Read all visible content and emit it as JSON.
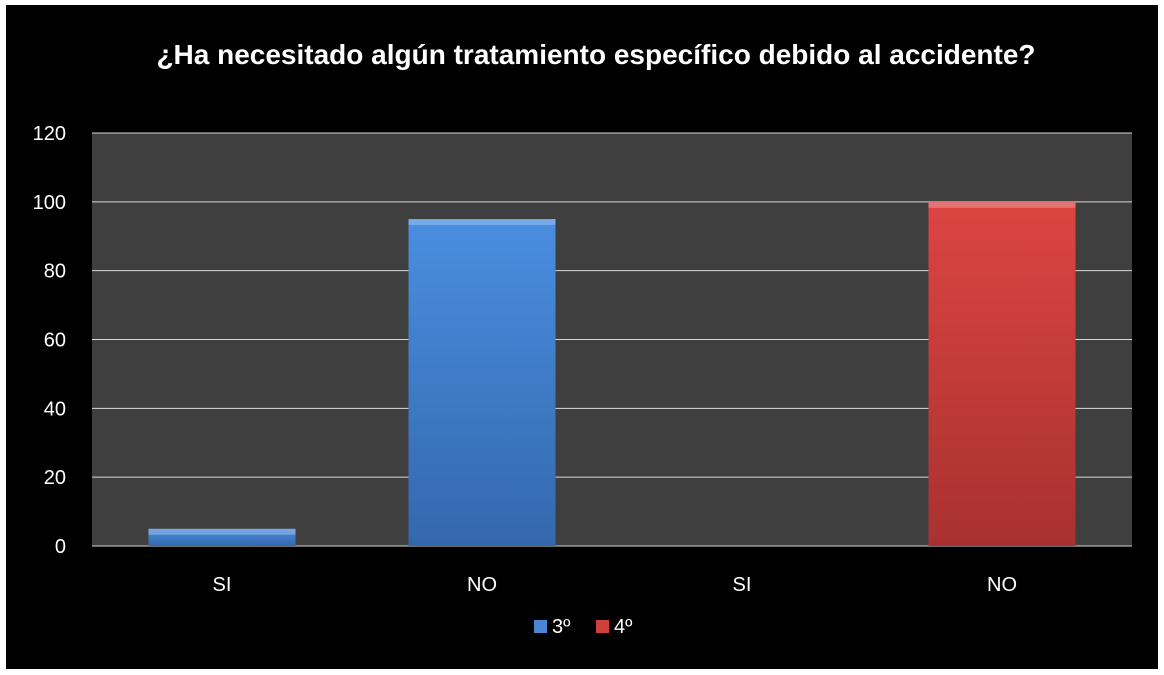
{
  "chart_data": {
    "type": "bar",
    "title": "¿Ha necesitado algún tratamiento específico debido al accidente?",
    "xlabel": "",
    "ylabel": "",
    "categories": [
      "SI",
      "NO",
      "SI",
      "NO"
    ],
    "series": [
      {
        "name": "3º",
        "color": "#4a86d2",
        "values": [
          5,
          95,
          null,
          null
        ]
      },
      {
        "name": "4º",
        "color": "#cf3f3c",
        "values": [
          null,
          null,
          0,
          100
        ]
      }
    ],
    "ylim": [
      0,
      120
    ],
    "yticks": [
      0,
      20,
      40,
      60,
      80,
      100,
      120
    ],
    "grid": true,
    "legend": "bottom",
    "plot_background": "#3f3f3f",
    "page_background": "#000000"
  }
}
